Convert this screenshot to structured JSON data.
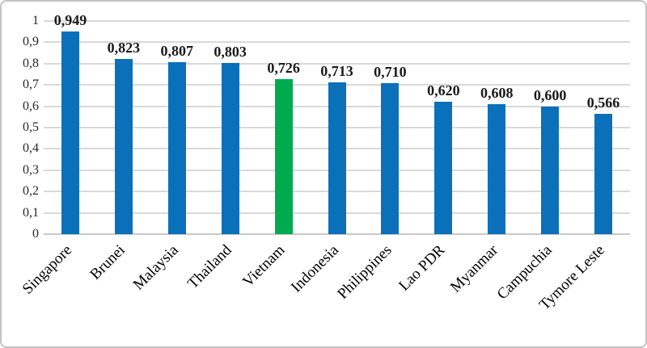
{
  "chart_data": {
    "type": "bar",
    "categories": [
      "Singapore",
      "Brunei",
      "Malaysia",
      "Thailand",
      "Vietnam",
      "Indonesia",
      "Philippines",
      "Lao PDR",
      "Myanmar",
      "Campuchia",
      "Tymore Leste"
    ],
    "values": [
      0.949,
      0.823,
      0.807,
      0.803,
      0.726,
      0.713,
      0.71,
      0.62,
      0.608,
      0.6,
      0.566
    ],
    "data_labels": [
      "0,949",
      "0,823",
      "0,807",
      "0,803",
      "0,726",
      "0,713",
      "0,710",
      "0,620",
      "0,608",
      "0,600",
      "0,566"
    ],
    "highlight_index": 4,
    "highlight_category": "Vietnam",
    "title": "",
    "xlabel": "",
    "ylabel": "",
    "ylim": [
      0,
      1
    ],
    "ytick_step": 0.1,
    "ytick_labels": [
      "0",
      "0,1",
      "0,2",
      "0,3",
      "0,4",
      "0,5",
      "0,6",
      "0,7",
      "0,8",
      "0,9",
      "1"
    ],
    "grid": true,
    "legend": "none",
    "colors": {
      "bar_default": "#0b70ba",
      "bar_highlight": "#00ab50",
      "gridline": "#d9d9d9",
      "axis_line": "#c9c9c9",
      "tick_text": "#262626",
      "label_text": "#1a1a1a"
    }
  }
}
